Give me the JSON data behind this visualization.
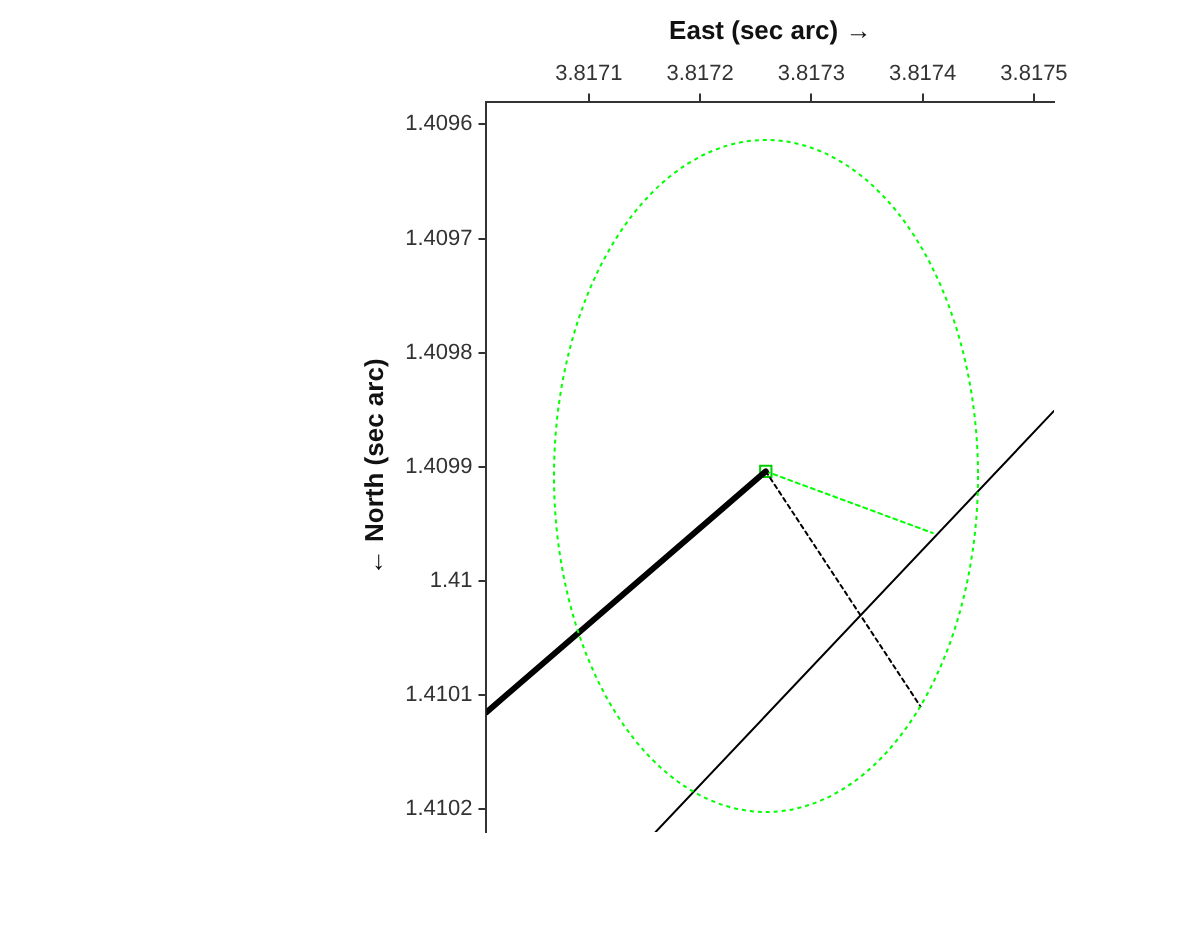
{
  "chart_data": {
    "type": "line",
    "xlabel": "East (sec arc) →",
    "ylabel": "← North (sec arc)",
    "xlim": [
      3.817008,
      3.817518
    ],
    "ylim": [
      1.41022,
      1.40958
    ],
    "xticks": [
      3.8171,
      3.8172,
      3.8173,
      3.8174,
      3.8175
    ],
    "yticks": [
      1.4096,
      1.4097,
      1.4098,
      1.4099,
      1.41,
      1.4101,
      1.4102
    ],
    "grid": false,
    "legend": false,
    "series": [
      {
        "color": "#000000",
        "line_style": "solid",
        "x": [
          3.817008,
          3.817259
        ],
        "values": [
          1.410115,
          1.409904
        ]
      },
      {
        "color": "#000000",
        "line_style": "solid",
        "x": [
          3.81716,
          3.817518
        ],
        "values": [
          1.41022,
          1.409851
        ]
      },
      {
        "color": "#000000",
        "line_style": "dotted",
        "x": [
          3.817259,
          3.817398
        ],
        "values": [
          1.409904,
          1.41011
        ]
      },
      {
        "color": "#00ff00",
        "line_style": "dotted",
        "x": [
          3.817259,
          3.817409
        ],
        "values": [
          1.409904,
          1.409958
        ]
      },
      {
        "type": "scatter",
        "color": "#00cc00",
        "marker": "square",
        "x": [
          3.817259
        ],
        "values": [
          1.409904
        ]
      }
    ]
  }
}
